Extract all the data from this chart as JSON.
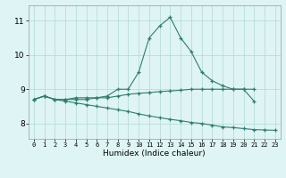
{
  "x": [
    0,
    1,
    2,
    3,
    4,
    5,
    6,
    7,
    8,
    9,
    10,
    11,
    12,
    13,
    14,
    15,
    16,
    17,
    18,
    19,
    20,
    21,
    22,
    23
  ],
  "line_top": [
    8.7,
    8.8,
    8.7,
    8.7,
    8.7,
    8.7,
    8.75,
    8.8,
    9.0,
    9.0,
    9.5,
    10.5,
    10.85,
    11.1,
    10.5,
    10.1,
    9.5,
    9.25,
    9.1,
    9.0,
    9.0,
    8.65,
    null,
    null
  ],
  "line_mid": [
    8.7,
    8.8,
    8.7,
    8.7,
    8.75,
    8.75,
    8.75,
    8.75,
    8.8,
    8.85,
    8.88,
    8.9,
    8.93,
    8.95,
    8.97,
    9.0,
    9.0,
    9.0,
    9.0,
    9.0,
    9.0,
    9.0,
    null,
    null
  ],
  "line_bot": [
    8.7,
    8.8,
    8.7,
    8.65,
    8.6,
    8.55,
    8.5,
    8.45,
    8.4,
    8.35,
    8.28,
    8.22,
    8.17,
    8.12,
    8.08,
    8.03,
    8.0,
    7.95,
    7.9,
    7.88,
    7.85,
    7.82,
    7.81,
    7.8
  ],
  "color": "#2e7d6e",
  "bg_color": "#dff4f4",
  "grid_color": "#b0d8d8",
  "xlabel": "Humidex (Indice chaleur)",
  "yticks": [
    8,
    9,
    10,
    11
  ],
  "xticks": [
    0,
    1,
    2,
    3,
    4,
    5,
    6,
    7,
    8,
    9,
    10,
    11,
    12,
    13,
    14,
    15,
    16,
    17,
    18,
    19,
    20,
    21,
    22,
    23
  ],
  "xlim": [
    -0.5,
    23.5
  ],
  "ylim": [
    7.55,
    11.45
  ]
}
